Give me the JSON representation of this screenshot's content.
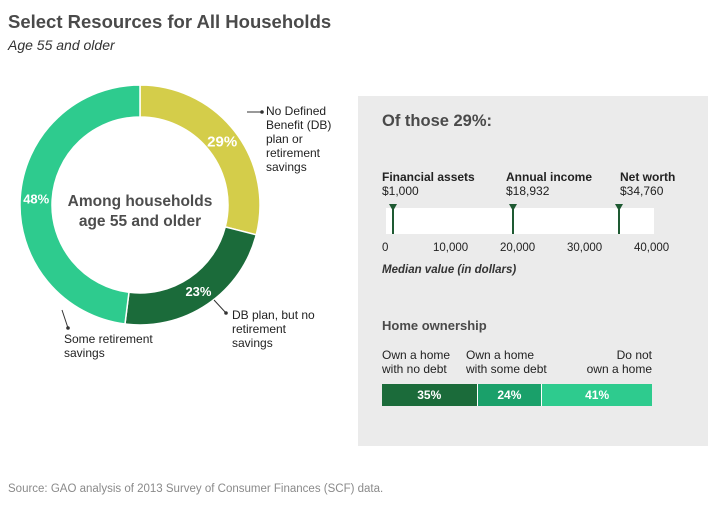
{
  "header": {
    "title": "Select Resources for All Households",
    "subtitle": "Age 55 and older"
  },
  "donut": {
    "center_line1": "Among households",
    "center_line2": "age 55 and older",
    "annotations": {
      "no_db": [
        "No Defined",
        "Benefit (DB)",
        "plan or",
        "retirement",
        "savings"
      ],
      "db_plan": [
        "DB plan, but no",
        "retirement",
        "savings"
      ],
      "some_savings": [
        "Some retirement",
        "savings"
      ]
    }
  },
  "panel": {
    "title": "Of those 29%:",
    "metrics": [
      {
        "label": "Financial assets",
        "value_text": "$1,000"
      },
      {
        "label": "Annual income",
        "value_text": "$18,932"
      },
      {
        "label": "Net worth",
        "value_text": "$34,760"
      }
    ],
    "axis_ticks": [
      "0",
      "10,000",
      "20,000",
      "30,000",
      "40,000"
    ],
    "axis_title": "Median value (in dollars)",
    "home": {
      "title": "Home ownership",
      "categories": [
        [
          "Own a home",
          "with no debt"
        ],
        [
          "Own a home",
          "with some debt"
        ],
        [
          "Do not",
          "own a home"
        ]
      ]
    }
  },
  "source": "Source: GAO analysis of 2013 Survey of Consumer Finances (SCF) data.",
  "colors": {
    "yellow": "#d4cd4a",
    "dark_green": "#1b6b3a",
    "teal": "#2ecb8e",
    "mid_green": "#1aa06a",
    "panel_bg": "#ebebeb"
  },
  "chart_data": [
    {
      "type": "pie",
      "categories": [
        "No Defined Benefit (DB) plan or retirement savings",
        "DB plan, but no retirement savings",
        "Some retirement savings"
      ],
      "values": [
        29,
        23,
        48
      ],
      "labels": [
        "29%",
        "23%",
        "48%"
      ]
    },
    {
      "type": "scatter",
      "xlabel": "Median value (in dollars)",
      "xlim": [
        0,
        40000
      ],
      "categories": [
        "Financial assets",
        "Annual income",
        "Net worth"
      ],
      "values": [
        1000,
        18932,
        34760
      ]
    },
    {
      "type": "bar",
      "title": "Home ownership",
      "categories": [
        "Own a home with no debt",
        "Own a home with some debt",
        "Do not own a home"
      ],
      "values": [
        35,
        24,
        41
      ],
      "labels": [
        "35%",
        "24%",
        "41%"
      ]
    }
  ]
}
